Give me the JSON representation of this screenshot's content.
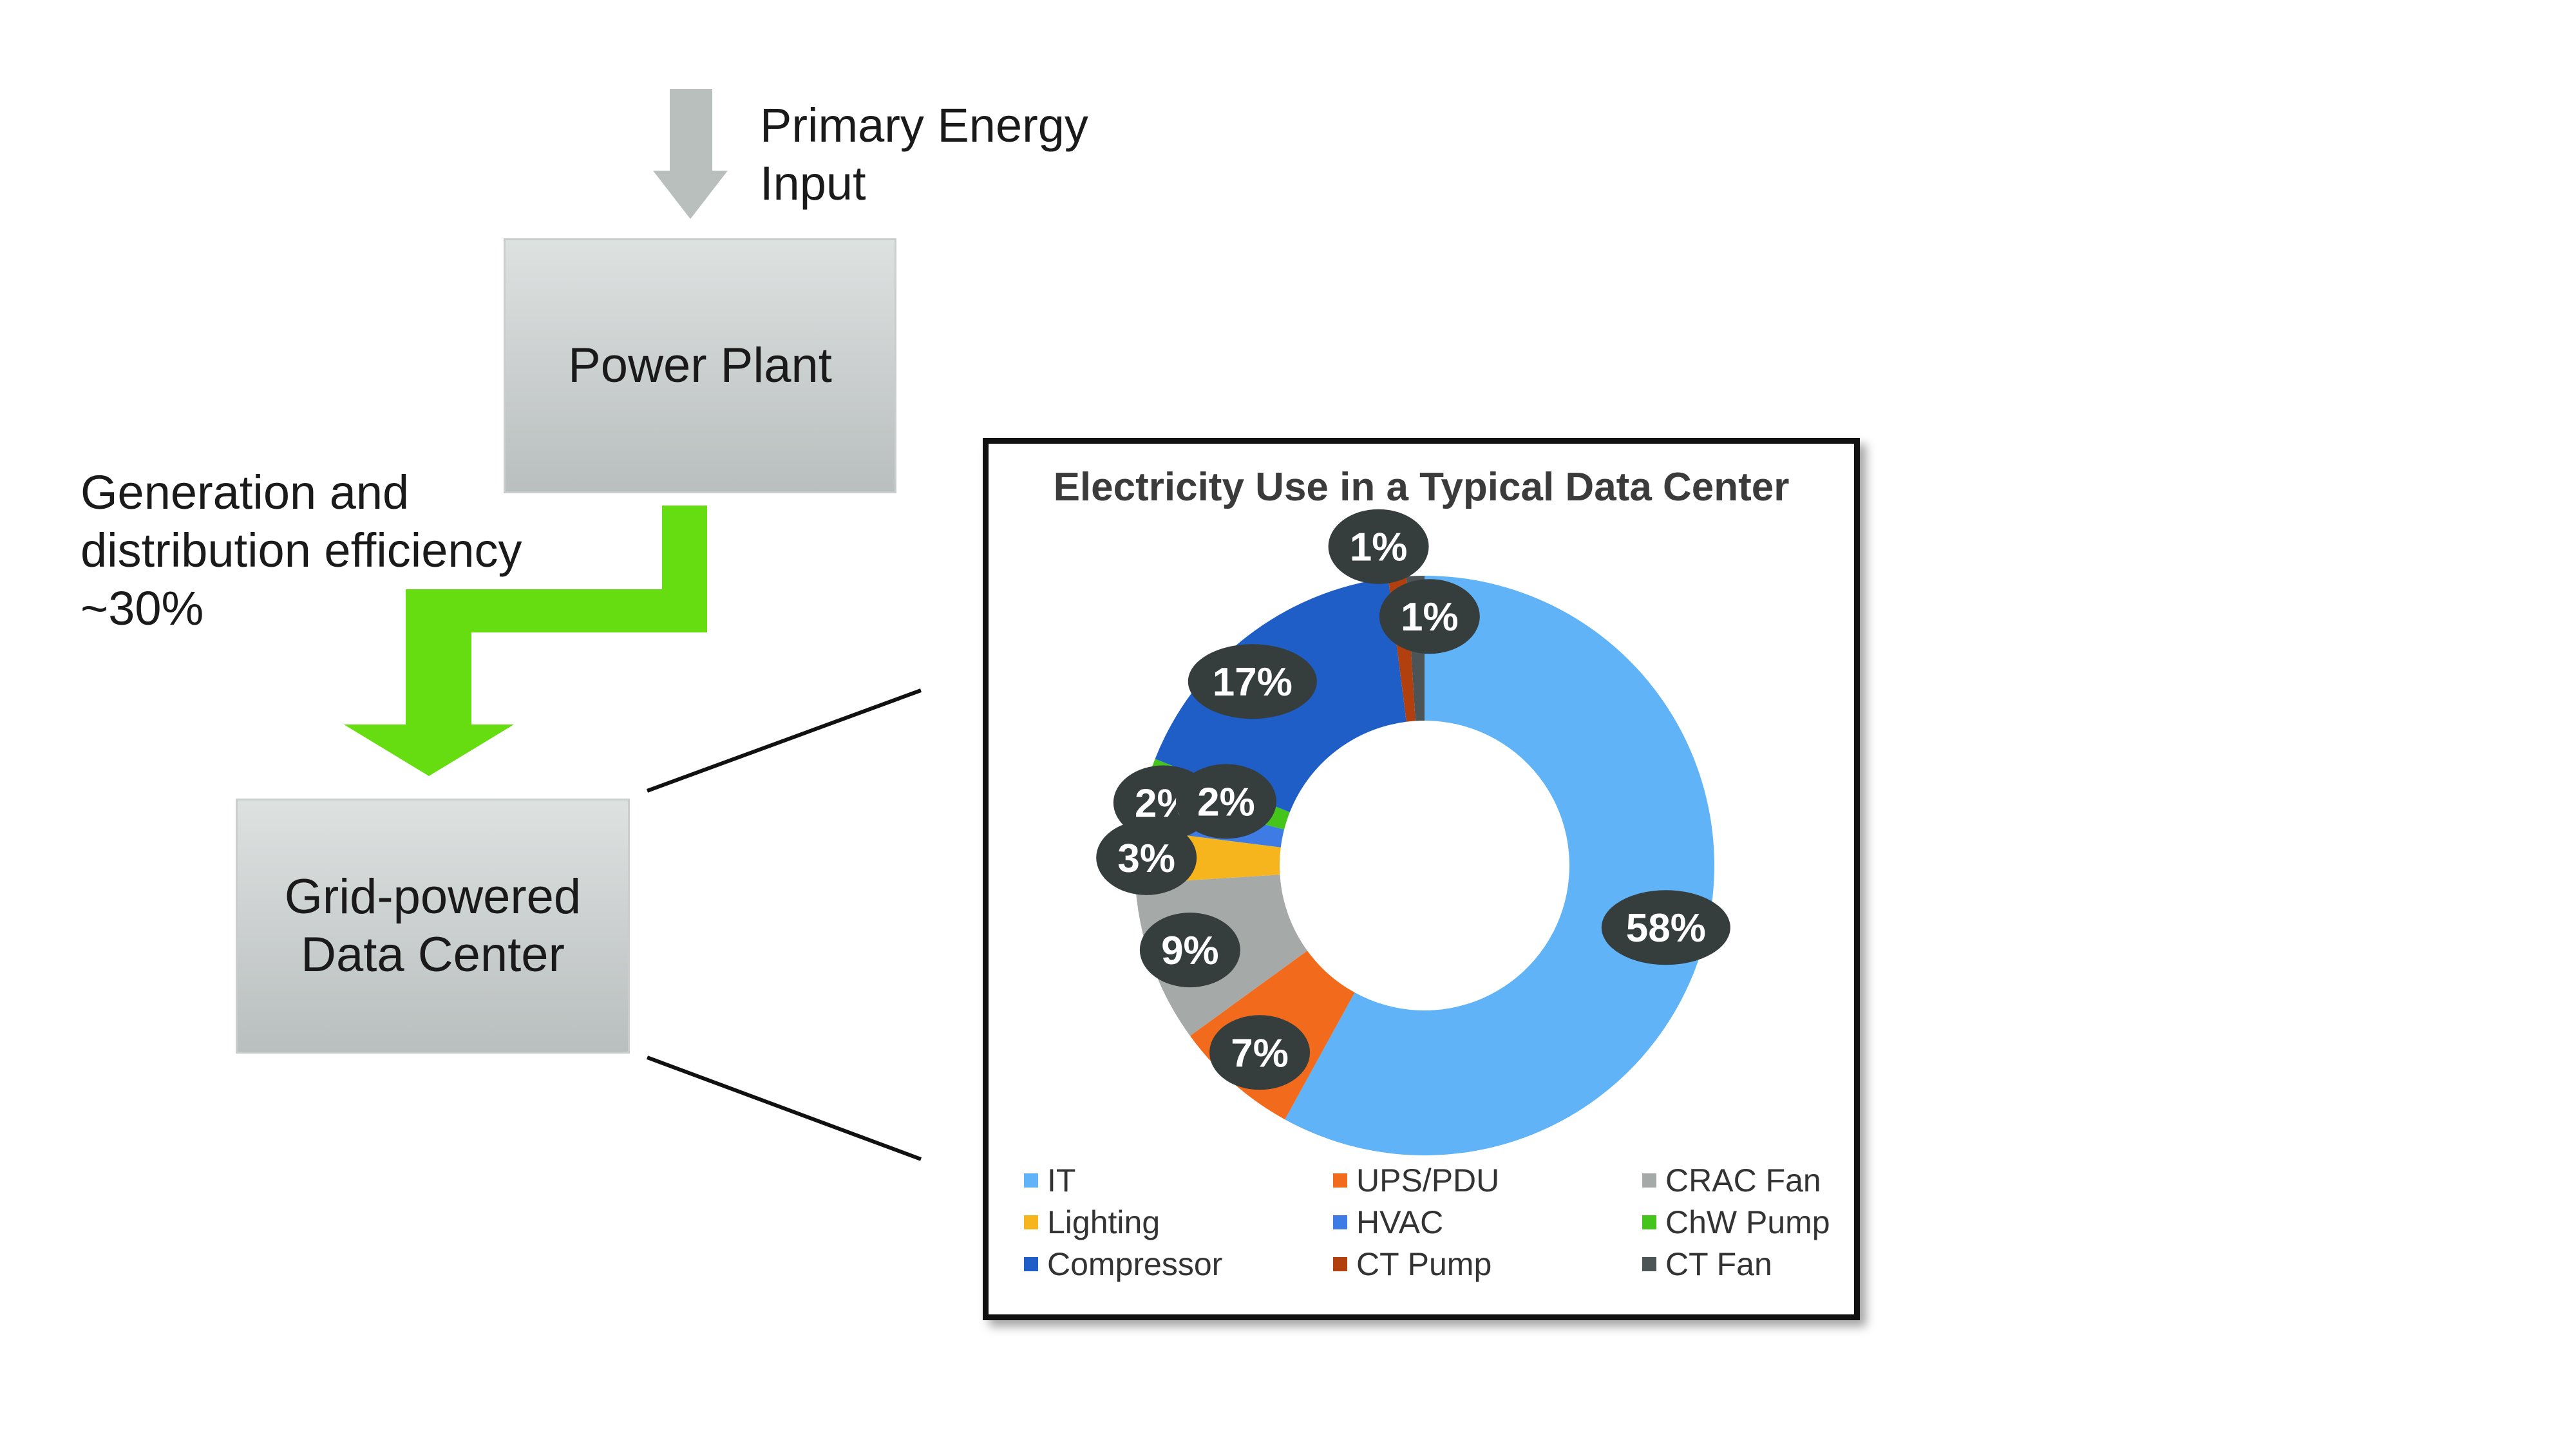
{
  "diagram": {
    "primary_input_label": "Primary Energy\nInput",
    "power_plant_label": "Power Plant",
    "efficiency_label": "Generation and\ndistribution efficiency\n~30%",
    "data_center_label": "Grid-powered\nData Center",
    "colors": {
      "gray_arrow": "#b8bfbd",
      "green_arrow": "#66dd11",
      "box_fill_top": "#dde2e1",
      "box_fill_bottom": "#b9bfbe"
    }
  },
  "chart_data": {
    "type": "pie",
    "variant": "donut",
    "title": "Electricity Use in a Typical Data Center",
    "legend_position": "bottom",
    "categories": [
      "IT",
      "UPS/PDU",
      "CRAC Fan",
      "Lighting",
      "HVAC",
      "ChW Pump",
      "Compressor",
      "CT Pump",
      "CT Fan"
    ],
    "values": [
      58,
      7,
      9,
      3,
      2,
      2,
      17,
      1,
      1
    ],
    "data_labels": [
      "58%",
      "7%",
      "9%",
      "3%",
      "2%",
      "2%",
      "17%",
      "1%",
      "1%"
    ],
    "colors": [
      "#5fb3f6",
      "#f26a1b",
      "#a5a9a8",
      "#f7b51d",
      "#3f7be5",
      "#45c41c",
      "#1f5ec6",
      "#b2400e",
      "#4c5455"
    ]
  }
}
